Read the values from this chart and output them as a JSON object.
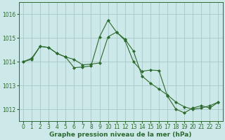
{
  "series1_x": [
    0,
    1,
    2,
    3,
    4,
    5,
    6,
    7,
    8,
    9,
    10,
    11,
    12,
    13,
    14,
    15,
    16,
    17,
    18,
    19,
    20,
    21,
    22,
    23
  ],
  "series1_y": [
    1014.0,
    1014.15,
    1014.65,
    1014.6,
    1014.35,
    1014.2,
    1014.1,
    1013.87,
    1013.9,
    1013.95,
    1015.05,
    1015.25,
    1014.95,
    1014.45,
    1013.4,
    1013.1,
    1012.85,
    1012.6,
    1012.3,
    1012.1,
    1012.0,
    1012.05,
    1012.15,
    1012.3
  ],
  "series2_x": [
    0,
    1,
    2,
    3,
    4,
    5,
    6,
    7,
    8,
    9,
    10,
    11,
    12,
    13,
    14,
    15,
    16,
    17,
    18,
    19,
    20,
    21,
    22,
    23
  ],
  "series2_y": [
    1014.0,
    1014.1,
    1014.65,
    1014.6,
    1014.35,
    1014.2,
    1013.75,
    1013.78,
    1013.82,
    1015.05,
    1015.75,
    1015.25,
    1014.9,
    1014.0,
    1013.6,
    1013.65,
    1013.63,
    1012.55,
    1012.0,
    1011.85,
    1012.05,
    1012.15,
    1012.05,
    1012.3
  ],
  "line_color": "#2d6a2d",
  "bg_color": "#cce8e8",
  "grid_color": "#a8c8c8",
  "xlabel": "Graphe pression niveau de la mer (hPa)",
  "ylim": [
    1011.5,
    1016.5
  ],
  "xlim": [
    -0.5,
    23.5
  ],
  "xticks": [
    0,
    1,
    2,
    3,
    4,
    5,
    6,
    7,
    8,
    9,
    10,
    11,
    12,
    13,
    14,
    15,
    16,
    17,
    18,
    19,
    20,
    21,
    22,
    23
  ],
  "yticks": [
    1012,
    1013,
    1014,
    1015,
    1016
  ],
  "xlabel_fontsize": 6.5,
  "tick_fontsize": 5.5
}
